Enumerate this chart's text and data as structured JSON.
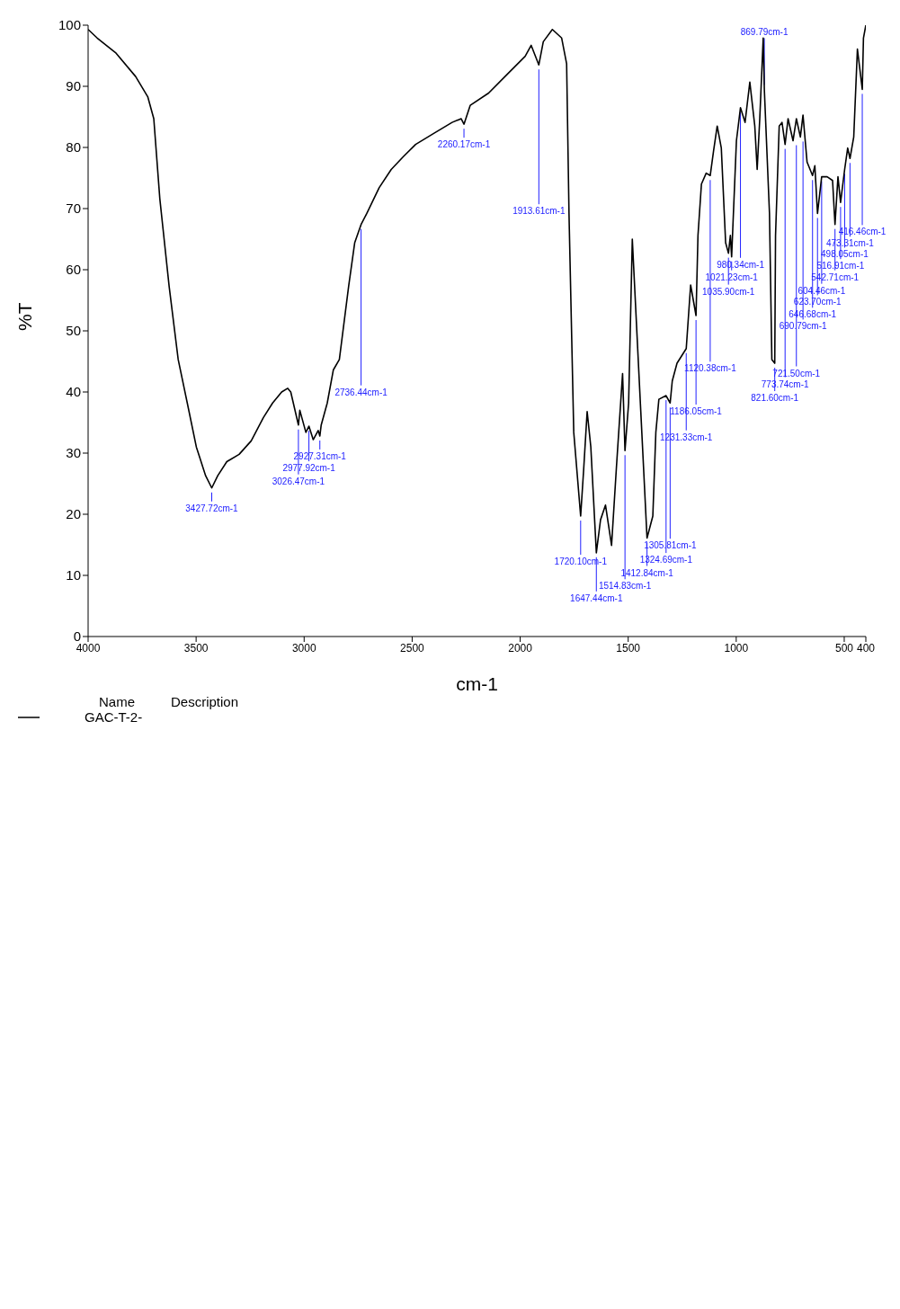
{
  "chart_data": {
    "type": "line",
    "xlabel": "cm-1",
    "ylabel": "%T",
    "xlim": [
      4000,
      400
    ],
    "xticks": [
      4000,
      3500,
      3000,
      2500,
      2000,
      1500,
      1000,
      500,
      400
    ],
    "ylim": [
      0,
      100
    ],
    "yticks": [
      0,
      10,
      20,
      30,
      40,
      50,
      60,
      70,
      80,
      90,
      100
    ],
    "grid": false,
    "legend": "bottom left",
    "legend_title": "Name",
    "marker": "none",
    "line_style": "solid",
    "series": [
      {
        "name": "GAC-T-2-",
        "color": "#000000",
        "x": [
          4000,
          3958,
          3873,
          3780,
          3724,
          3696,
          3668,
          3625,
          3583,
          3541,
          3499,
          3456,
          3427.72,
          3400,
          3358,
          3301,
          3245,
          3189,
          3146,
          3104,
          3076,
          3062,
          3026.47,
          3020,
          2992,
          2977.92,
          2958,
          2935,
          2927.31,
          2921,
          2893,
          2865,
          2837,
          2794,
          2766,
          2736.44,
          2710,
          2653,
          2597,
          2541,
          2484,
          2400,
          2315,
          2273,
          2260.17,
          2231,
          2146,
          2062,
          1977,
          1949,
          1913.61,
          1893,
          1851,
          1808,
          1785,
          1774,
          1752,
          1720.1,
          1706,
          1690,
          1673,
          1647.44,
          1628,
          1605,
          1577,
          1555,
          1526,
          1514.83,
          1498,
          1481,
          1442,
          1412.84,
          1386,
          1372,
          1358,
          1324.69,
          1305.81,
          1296,
          1274,
          1231.33,
          1211,
          1186.05,
          1177,
          1161,
          1139,
          1120.38,
          1105,
          1088,
          1069,
          1049,
          1035.9,
          1027,
          1021.23,
          999,
          980.34,
          959,
          937,
          914,
          903,
          891,
          875,
          869.79,
          846,
          835,
          821.6,
          818,
          801,
          788,
          773.74,
          760,
          737,
          721.5,
          703,
          690.79,
          672,
          646.68,
          636,
          623.7,
          604.46,
          579,
          554,
          542.71,
          529,
          516.91,
          498.05,
          484,
          473.31,
          456,
          439,
          416.46,
          411,
          400
        ],
        "values": [
          99.3,
          97.9,
          95.5,
          91.6,
          88.3,
          84.7,
          71.6,
          57.3,
          45.3,
          38.2,
          31.0,
          26.3,
          24.3,
          26.3,
          28.6,
          29.8,
          32.0,
          35.8,
          38.2,
          40.0,
          40.6,
          40.0,
          34.6,
          37.0,
          33.4,
          34.4,
          32.2,
          33.7,
          32.8,
          34.6,
          38.2,
          43.6,
          45.3,
          57.3,
          64.4,
          67.4,
          69.2,
          73.4,
          76.4,
          78.5,
          80.5,
          82.3,
          84.1,
          84.7,
          83.8,
          86.9,
          88.9,
          91.9,
          94.9,
          96.7,
          93.5,
          97.3,
          99.3,
          97.9,
          93.7,
          69.2,
          33.4,
          19.7,
          27.4,
          36.8,
          31.0,
          13.7,
          19.1,
          21.5,
          14.9,
          27.4,
          43.0,
          30.4,
          38.2,
          65.0,
          37.0,
          16.1,
          19.7,
          33.4,
          38.8,
          39.4,
          38.2,
          41.8,
          44.7,
          47.1,
          57.5,
          52.5,
          65.6,
          74.0,
          75.8,
          75.4,
          79.4,
          83.5,
          79.9,
          64.4,
          62.7,
          65.6,
          62.1,
          81.1,
          86.5,
          84.1,
          90.7,
          83.5,
          76.4,
          84.7,
          97.9,
          89.5,
          69.2,
          45.3,
          44.7,
          65.6,
          83.5,
          84.1,
          80.5,
          84.7,
          81.1,
          84.7,
          81.7,
          85.3,
          77.6,
          75.4,
          77.0,
          69.2,
          75.2,
          75.2,
          74.6,
          67.4,
          75.2,
          71.0,
          76.4,
          79.9,
          78.2,
          81.7,
          96.1,
          89.5,
          97.9,
          100
        ]
      }
    ],
    "annotations": [
      "Description",
      {
        "text": "416.46cm-1",
        "x": 416.46,
        "y": 89.5
      },
      {
        "text": "473.31cm-1",
        "x": 473.31,
        "y": 78.2
      },
      {
        "text": "498.05cm-1",
        "x": 498.05,
        "y": 76.4
      },
      {
        "text": "516.91cm-1",
        "x": 516.91,
        "y": 71.0
      },
      {
        "text": "542.71cm-1",
        "x": 542.71,
        "y": 67.4
      },
      {
        "text": "604.46cm-1",
        "x": 604.46,
        "y": 75.2
      },
      {
        "text": "623.70cm-1",
        "x": 623.7,
        "y": 69.2
      },
      {
        "text": "646.68cm-1",
        "x": 646.68,
        "y": 75.4
      },
      {
        "text": "690.79cm-1",
        "x": 690.79,
        "y": 81.7
      },
      {
        "text": "721.50cm-1",
        "x": 721.5,
        "y": 81.1
      },
      {
        "text": "773.74cm-1",
        "x": 773.74,
        "y": 80.5
      },
      {
        "text": "821.60cm-1",
        "x": 821.6,
        "y": 44.7
      },
      {
        "text": "869.79cm-1",
        "x": 869.79,
        "y": 89.5
      },
      {
        "text": "980.34cm-1",
        "x": 980.34,
        "y": 86.5
      },
      {
        "text": "1021.23cm-1",
        "x": 1021.23,
        "y": 62.1
      },
      {
        "text": "1035.90cm-1",
        "x": 1035.9,
        "y": 62.7
      },
      {
        "text": "1120.38cm-1",
        "x": 1120.38,
        "y": 75.4
      },
      {
        "text": "1186.05cm-1",
        "x": 1186.05,
        "y": 52.5
      },
      {
        "text": "1231.33cm-1",
        "x": 1231.33,
        "y": 47.1
      },
      {
        "text": "1305.81cm-1",
        "x": 1305.81,
        "y": 38.2
      },
      {
        "text": "1324.69cm-1",
        "x": 1324.69,
        "y": 39.4
      },
      {
        "text": "1412.84cm-1",
        "x": 1412.84,
        "y": 16.1
      },
      {
        "text": "1514.83cm-1",
        "x": 1514.83,
        "y": 30.4
      },
      {
        "text": "1647.44cm-1",
        "x": 1647.44,
        "y": 13.7
      },
      {
        "text": "1720.10cm-1",
        "x": 1720.1,
        "y": 19.7
      },
      {
        "text": "1913.61cm-1",
        "x": 1913.61,
        "y": 93.5
      },
      {
        "text": "2260.17cm-1",
        "x": 2260.17,
        "y": 83.8
      },
      {
        "text": "2736.44cm-1",
        "x": 2736.44,
        "y": 67.4
      },
      {
        "text": "2927.31cm-1",
        "x": 2927.31,
        "y": 32.8
      },
      {
        "text": "2977.92cm-1",
        "x": 2977.92,
        "y": 34.4
      },
      {
        "text": "3026.47cm-1",
        "x": 3026.47,
        "y": 34.6
      },
      {
        "text": "3427.72cm-1",
        "x": 3427.72,
        "y": 24.3
      }
    ]
  }
}
